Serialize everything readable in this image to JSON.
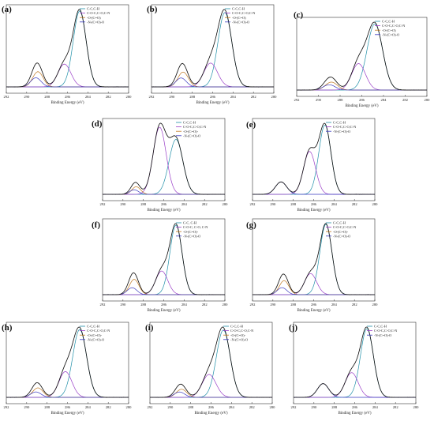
{
  "colors": {
    "c_c": "#1f8fa8",
    "c_o": "#9a3fc8",
    "o_co": "#c07820",
    "n_co": "#3a3ac0",
    "envelope": "#111111",
    "raw": "#888888"
  },
  "chart_data": [
    {
      "type": "line",
      "label": "(a)",
      "xlabel": "Binding Energy (eV)",
      "ylabel": "",
      "xlim": [
        292,
        280
      ],
      "x_ticks": [
        292,
        290,
        288,
        286,
        284,
        282,
        280
      ],
      "legend": [
        "C-C,C-H",
        "C-O-C,C-O,C-N",
        "-O-(C=O)",
        "-N-(C=O)-O"
      ],
      "legend_position": "top-right",
      "peaks": [
        {
          "series": "C-C,C-H",
          "center": 284.8,
          "height": 1.0,
          "fwhm": 1.5
        },
        {
          "series": "C-O-C,C-O,C-N",
          "center": 286.3,
          "height": 0.3,
          "fwhm": 1.5
        },
        {
          "series": "-O-(C=O)",
          "center": 288.9,
          "height": 0.2,
          "fwhm": 1.2
        },
        {
          "series": "-N-(C=O)-O",
          "center": 289.1,
          "height": 0.12,
          "fwhm": 1.2
        }
      ]
    },
    {
      "type": "line",
      "label": "(b)",
      "xlabel": "Binding Energy (eV)",
      "ylabel": "",
      "xlim": [
        292,
        280
      ],
      "x_ticks": [
        292,
        290,
        288,
        286,
        284,
        282,
        280
      ],
      "legend": [
        "C-C,C-H",
        "C-O-C,C-O,C-N",
        "-O-(C=O)",
        "-N-(C=O)-O"
      ],
      "legend_position": "top-right",
      "peaks": [
        {
          "series": "C-C,C-H",
          "center": 284.8,
          "height": 1.0,
          "fwhm": 1.6
        },
        {
          "series": "C-O-C,C-O,C-N",
          "center": 286.2,
          "height": 0.32,
          "fwhm": 1.6
        },
        {
          "series": "-O-(C=O)",
          "center": 288.9,
          "height": 0.2,
          "fwhm": 1.2
        },
        {
          "series": "-N-(C=O)-O",
          "center": 289.1,
          "height": 0.12,
          "fwhm": 1.2
        }
      ]
    },
    {
      "type": "line",
      "label": "(c)",
      "xlabel": "Binding Energy (eV)",
      "ylabel": "",
      "xlim": [
        292,
        280
      ],
      "x_ticks": [
        292,
        290,
        288,
        286,
        284,
        282,
        280
      ],
      "legend": [
        "C-C,C-H",
        "C-O-C,C-O,C-N",
        "-O-(C=O)",
        "-N-(C=O)-O"
      ],
      "legend_position": "top-right",
      "peaks": [
        {
          "series": "C-C,C-H",
          "center": 284.8,
          "height": 1.0,
          "fwhm": 1.7
        },
        {
          "series": "C-O-C,C-O,C-N",
          "center": 286.3,
          "height": 0.4,
          "fwhm": 1.5
        },
        {
          "series": "-O-(C=O)",
          "center": 288.8,
          "height": 0.12,
          "fwhm": 1.3
        },
        {
          "series": "-N-(C=O)-O",
          "center": 289.0,
          "height": 0.08,
          "fwhm": 1.3
        }
      ]
    },
    {
      "type": "line",
      "label": "(d)",
      "xlabel": "Binding Energy (eV)",
      "ylabel": "",
      "xlim": [
        292,
        280
      ],
      "x_ticks": [
        292,
        290,
        288,
        286,
        284,
        282,
        280
      ],
      "legend": [
        "C-C,C-H",
        "C-O-C,C-O,C-N",
        "-O-(C=O)-",
        "-N-(C=O)-O"
      ],
      "legend_position": "top-right",
      "peaks": [
        {
          "series": "C-C,C-H",
          "center": 284.8,
          "height": 0.72,
          "fwhm": 1.6
        },
        {
          "series": "C-O-C,C-O,C-N",
          "center": 286.4,
          "height": 0.88,
          "fwhm": 1.5
        },
        {
          "series": "-O-(C=O)-",
          "center": 288.7,
          "height": 0.1,
          "fwhm": 1.0
        },
        {
          "series": "-N-(C=O)-O",
          "center": 288.9,
          "height": 0.06,
          "fwhm": 1.0
        }
      ]
    },
    {
      "type": "line",
      "label": "(e)",
      "xlabel": "Binding Energy (eV)",
      "ylabel": "",
      "xlim": [
        292,
        280
      ],
      "x_ticks": [
        292,
        290,
        288,
        286,
        284,
        282,
        280
      ],
      "legend": [
        "C-C,C-H",
        "C-O-C,C-O,C-N",
        "-N-(C=O)-O"
      ],
      "legend_position": "top-right",
      "peaks": [
        {
          "series": "C-C,C-H",
          "center": 284.9,
          "height": 1.0,
          "fwhm": 1.4
        },
        {
          "series": "C-O-C,C-O,C-N",
          "center": 286.4,
          "height": 0.62,
          "fwhm": 1.4
        },
        {
          "series": "-N-(C=O)-O",
          "center": 289.2,
          "height": 0.18,
          "fwhm": 1.3
        }
      ]
    },
    {
      "type": "line",
      "label": "(f)",
      "xlabel": "Binding Energy (eV)",
      "ylabel": "",
      "xlim": [
        292,
        280
      ],
      "x_ticks": [
        292,
        290,
        288,
        286,
        284,
        282,
        280
      ],
      "legend": [
        "C-C, C-H",
        "C-O-C, C-O, C-N",
        "-O-(C=O)-",
        "-N-(C=O)-O"
      ],
      "legend_position": "top-right",
      "peaks": [
        {
          "series": "C-C, C-H",
          "center": 284.8,
          "height": 1.0,
          "fwhm": 1.4
        },
        {
          "series": "C-O-C, C-O, C-N",
          "center": 286.2,
          "height": 0.34,
          "fwhm": 1.4
        },
        {
          "series": "-O-(C=O)-",
          "center": 288.9,
          "height": 0.22,
          "fwhm": 1.1
        },
        {
          "series": "-N-(C=O)-O",
          "center": 289.1,
          "height": 0.1,
          "fwhm": 1.1
        }
      ]
    },
    {
      "type": "line",
      "label": "(g)",
      "xlabel": "Binding Energy (eV)",
      "ylabel": "",
      "xlim": [
        292,
        280
      ],
      "x_ticks": [
        292,
        290,
        288,
        286,
        284,
        282,
        280
      ],
      "legend": [
        "C-C,C-H",
        "C-O-C,C-O,C-N",
        "-O-(C=O)-",
        "-N-(C=O)-O"
      ],
      "legend_position": "top-right",
      "peaks": [
        {
          "series": "C-C,C-H",
          "center": 284.8,
          "height": 1.0,
          "fwhm": 1.4
        },
        {
          "series": "C-O-C,C-O,C-N",
          "center": 286.3,
          "height": 0.3,
          "fwhm": 1.4
        },
        {
          "series": "-O-(C=O)-",
          "center": 288.9,
          "height": 0.2,
          "fwhm": 1.1
        },
        {
          "series": "-N-(C=O)-O",
          "center": 289.1,
          "height": 0.1,
          "fwhm": 1.1
        }
      ]
    },
    {
      "type": "line",
      "label": "(h)",
      "xlabel": "Binding Energy (eV)",
      "ylabel": "",
      "xlim": [
        292,
        280
      ],
      "x_ticks": [
        292,
        290,
        288,
        286,
        284,
        282,
        280
      ],
      "legend": [
        "C-C,C-H",
        "C-O-C,C-O,C-N",
        "-O-(C=O)-",
        "-N-(C=O)-O"
      ],
      "legend_position": "top-right",
      "peaks": [
        {
          "series": "C-C,C-H",
          "center": 284.8,
          "height": 1.0,
          "fwhm": 1.6
        },
        {
          "series": "C-O-C,C-O,C-N",
          "center": 286.2,
          "height": 0.38,
          "fwhm": 1.5
        },
        {
          "series": "-O-(C=O)-",
          "center": 288.9,
          "height": 0.14,
          "fwhm": 1.2
        },
        {
          "series": "-N-(C=O)-O",
          "center": 289.1,
          "height": 0.08,
          "fwhm": 1.2
        }
      ]
    },
    {
      "type": "line",
      "label": "(i)",
      "xlabel": "Binding Energy (eV)",
      "ylabel": "",
      "xlim": [
        292,
        280
      ],
      "x_ticks": [
        292,
        290,
        288,
        286,
        284,
        282,
        280
      ],
      "legend": [
        "C-C,C-H",
        "C-O-C,C-O,C-N",
        "-O-(C=O)-",
        "-N-(C=O)-O"
      ],
      "legend_position": "top-right",
      "peaks": [
        {
          "series": "C-C,C-H",
          "center": 284.8,
          "height": 1.0,
          "fwhm": 1.6
        },
        {
          "series": "C-O-C,C-O,C-N",
          "center": 286.2,
          "height": 0.34,
          "fwhm": 1.6
        },
        {
          "series": "-O-(C=O)-",
          "center": 288.9,
          "height": 0.12,
          "fwhm": 1.2
        },
        {
          "series": "-N-(C=O)-O",
          "center": 289.1,
          "height": 0.08,
          "fwhm": 1.2
        }
      ]
    },
    {
      "type": "line",
      "label": "(j)",
      "xlabel": "Binding Energy (eV)",
      "ylabel": "",
      "xlim": [
        292,
        280
      ],
      "x_ticks": [
        292,
        290,
        288,
        286,
        284,
        282,
        280
      ],
      "legend": [
        "C-C,C-H",
        "C-O-C,C-O,C-N",
        "-N-(C=O)-O"
      ],
      "legend_position": "top-right",
      "peaks": [
        {
          "series": "C-C,C-H",
          "center": 284.8,
          "height": 1.0,
          "fwhm": 1.5
        },
        {
          "series": "C-O-C,C-O,C-N",
          "center": 286.3,
          "height": 0.36,
          "fwhm": 1.5
        },
        {
          "series": "-N-(C=O)-O",
          "center": 289.1,
          "height": 0.2,
          "fwhm": 1.3
        }
      ]
    }
  ]
}
